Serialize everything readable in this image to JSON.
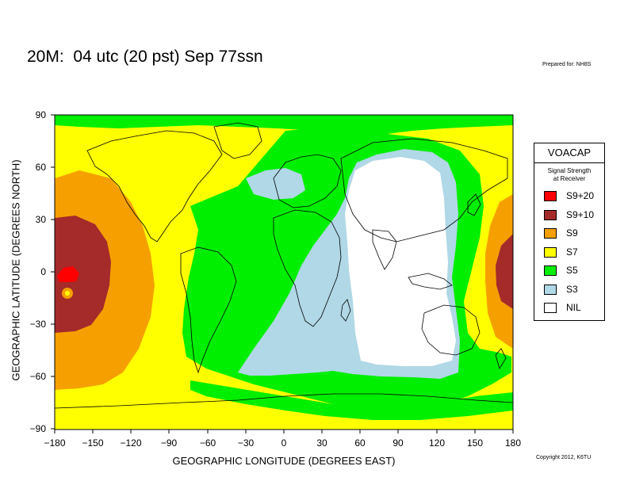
{
  "header": {
    "title": "20M:  04 utc (20 pst) Sep 77ssn",
    "prepared": "Prepared for: NH8S"
  },
  "footer": {
    "copyright": "Copyright 2012, K6TU"
  },
  "axes": {
    "ylabel": "GEOGRAPHIC LATITUDE (DEGREES NORTH)",
    "xlabel": "GEOGRAPHIC LONGITUDE (DEGREES EAST)",
    "xticks": [
      "−180",
      "−150",
      "−120",
      "−90",
      "−60",
      "−30",
      "0",
      "30",
      "60",
      "90",
      "120",
      "150",
      "180"
    ],
    "yticks": [
      "90",
      "60",
      "30",
      "0",
      "−30",
      "−60",
      "−90"
    ]
  },
  "legend": {
    "title": "VOACAP",
    "subtitle": [
      "Signal Strength",
      "at Receiver"
    ],
    "items": [
      {
        "label": "S9+20",
        "color": "#ff0000"
      },
      {
        "label": "S9+10",
        "color": "#a52a2a"
      },
      {
        "label": "S9",
        "color": "#f5a000"
      },
      {
        "label": "S7",
        "color": "#ffff00"
      },
      {
        "label": "S5",
        "color": "#00ee00"
      },
      {
        "label": "S3",
        "color": "#b0d8e6"
      },
      {
        "label": "NIL",
        "color": "#ffffff"
      }
    ]
  },
  "map": {
    "xlim": [
      -180,
      180
    ],
    "ylim": [
      -90,
      90
    ],
    "band": "20M",
    "colors": {
      "s920": "#ff0000",
      "s910": "#a52a2a",
      "s9": "#f5a000",
      "s7": "#ffff00",
      "s5": "#00ee00",
      "s3": "#b0d8e6",
      "nil": "#ffffff",
      "coast": "#000000"
    }
  }
}
